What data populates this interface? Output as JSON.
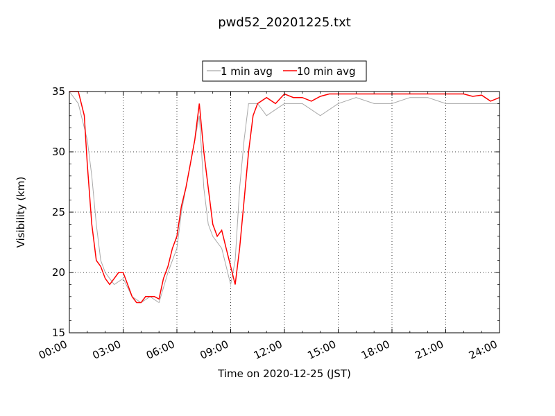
{
  "chart_data": {
    "type": "line",
    "title": "pwd52_20201225.txt",
    "xlabel": "Time on 2020-12-25 (JST)",
    "ylabel": "Visibility (km)",
    "xlim": [
      "00:00",
      "24:00"
    ],
    "ylim": [
      15,
      35
    ],
    "x_ticks": [
      "00:00",
      "03:00",
      "06:00",
      "09:00",
      "12:00",
      "15:00",
      "18:00",
      "21:00",
      "24:00"
    ],
    "y_ticks": [
      "15",
      "20",
      "25",
      "30",
      "35"
    ],
    "grid": true,
    "legend_position": "top-center",
    "series": [
      {
        "name": "1 min avg",
        "color": "#a9a9a9",
        "x": [
          "00:00",
          "00:30",
          "01:00",
          "01:15",
          "01:30",
          "01:45",
          "02:00",
          "02:30",
          "03:00",
          "03:30",
          "04:00",
          "04:30",
          "05:00",
          "05:30",
          "06:00",
          "06:15",
          "06:30",
          "06:45",
          "07:00",
          "07:15",
          "07:30",
          "07:45",
          "08:00",
          "08:30",
          "09:00",
          "09:15",
          "09:30",
          "09:45",
          "10:00",
          "10:30",
          "11:00",
          "11:30",
          "12:00",
          "13:00",
          "14:00",
          "15:00",
          "16:00",
          "17:00",
          "18:00",
          "19:00",
          "20:00",
          "21:00",
          "22:00",
          "23:00",
          "24:00"
        ],
        "values": [
          35,
          34,
          31,
          28,
          24,
          21,
          20,
          19,
          19.5,
          18,
          17.5,
          18,
          17.5,
          20,
          22,
          25,
          27,
          29,
          31,
          33,
          27,
          24,
          23,
          22,
          19,
          21,
          27,
          31,
          34,
          34,
          33,
          33.5,
          34,
          34,
          33,
          34,
          34.5,
          34,
          34,
          34.5,
          34.5,
          34,
          34,
          34,
          34
        ]
      },
      {
        "name": "10 min avg",
        "color": "#ff0000",
        "x": [
          "00:00",
          "00:30",
          "00:50",
          "01:00",
          "01:15",
          "01:30",
          "01:45",
          "02:00",
          "02:15",
          "02:30",
          "02:45",
          "03:00",
          "03:15",
          "03:30",
          "03:45",
          "04:00",
          "04:15",
          "04:30",
          "04:45",
          "05:00",
          "05:15",
          "05:30",
          "05:45",
          "06:00",
          "06:15",
          "06:30",
          "06:45",
          "07:00",
          "07:15",
          "07:30",
          "07:45",
          "08:00",
          "08:15",
          "08:30",
          "08:45",
          "09:00",
          "09:15",
          "09:30",
          "09:45",
          "10:00",
          "10:15",
          "10:30",
          "11:00",
          "11:30",
          "12:00",
          "12:30",
          "13:00",
          "13:30",
          "14:00",
          "14:30",
          "15:00",
          "16:00",
          "17:00",
          "18:00",
          "19:00",
          "20:00",
          "21:00",
          "22:00",
          "22:30",
          "23:00",
          "23:30",
          "24:00"
        ],
        "values": [
          35,
          35,
          33,
          29,
          24,
          21,
          20.5,
          19.5,
          19,
          19.5,
          20,
          20,
          19,
          18,
          17.5,
          17.5,
          18,
          18,
          18,
          17.8,
          19.5,
          20.5,
          22,
          23,
          25.5,
          27,
          29,
          31,
          34,
          30,
          27,
          24,
          23,
          23.5,
          22,
          20.5,
          19,
          22,
          26,
          30,
          33,
          34,
          34.5,
          34,
          34.8,
          34.5,
          34.5,
          34.2,
          34.6,
          34.8,
          34.8,
          34.8,
          34.8,
          34.8,
          34.8,
          34.8,
          34.8,
          34.8,
          34.6,
          34.7,
          34.2,
          34.5
        ]
      }
    ]
  }
}
